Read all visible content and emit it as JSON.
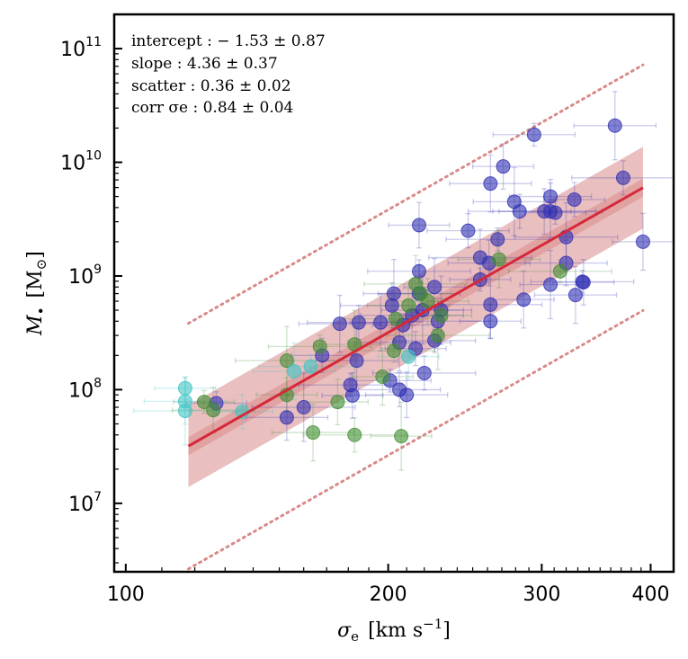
{
  "chart_data": {
    "type": "scatter",
    "title": "",
    "xlabel_symbol": "σ",
    "xlabel_sub": "e",
    "xlabel_units": "[km s",
    "xlabel_units_sup": "−1",
    "xlabel_units_close": "]",
    "ylabel_symbol": "M",
    "ylabel_sub": "•",
    "ylabel_units": "[M",
    "ylabel_units_sub": "⊙",
    "ylabel_units_close": "]",
    "xscale": "log",
    "yscale": "log",
    "xlim": [
      97,
      425
    ],
    "ylim": [
      2500000,
      200000000000
    ],
    "xticks": [
      {
        "value": 100,
        "label": "100"
      },
      {
        "value": 200,
        "label": "200"
      },
      {
        "value": 300,
        "label": "300"
      },
      {
        "value": 400,
        "label": "400"
      }
    ],
    "yticks": [
      {
        "value": 10000000,
        "base": "10",
        "exp": "7"
      },
      {
        "value": 100000000,
        "base": "10",
        "exp": "8"
      },
      {
        "value": 1000000000,
        "base": "10",
        "exp": "9"
      },
      {
        "value": 10000000000,
        "base": "10",
        "exp": "10"
      },
      {
        "value": 100000000000,
        "base": "10",
        "exp": "11"
      }
    ],
    "annotations": [
      "intercept :  − 1.53 ± 0.87",
      "slope :  4.36 ± 0.37",
      "scatter :  0.36 ± 0.02",
      "corr σe :  0.84 ± 0.04"
    ],
    "fit": {
      "intercept": -1.53,
      "slope": 4.36,
      "scatter": 0.36,
      "x_range": [
        118,
        392
      ],
      "fit_band_dex": 0.08,
      "scatter_band_dex": 0.36,
      "outer_offset_dex": 1.08,
      "line_color": "#d62839",
      "band_color": "#d98a8a",
      "outer_color": "#d98a8a"
    },
    "series": [
      {
        "name": "blue",
        "color": "#2f2fb3",
        "points": [
          [
            127,
            76000000.0
          ],
          [
            153,
            57000000.0
          ],
          [
            160,
            70000000.0
          ],
          [
            168,
            200000000.0
          ],
          [
            176,
            380000000.0
          ],
          [
            181,
            110000000.0
          ],
          [
            182,
            89000000.0
          ],
          [
            184,
            180000000.0
          ],
          [
            185,
            390000000.0
          ],
          [
            196,
            390000000.0
          ],
          [
            201,
            120000000.0
          ],
          [
            202,
            550000000.0
          ],
          [
            203,
            700000000.0
          ],
          [
            206,
            100000000.0
          ],
          [
            206,
            260000000.0
          ],
          [
            208,
            370000000.0
          ],
          [
            210,
            90000000.0
          ],
          [
            213,
            450000000.0
          ],
          [
            215,
            230000000.0
          ],
          [
            217,
            700000000.0
          ],
          [
            217,
            1100000000.0
          ],
          [
            217,
            2800000000.0
          ],
          [
            219,
            500000000.0
          ],
          [
            220,
            140000000.0
          ],
          [
            226,
            800000000.0
          ],
          [
            226,
            270000000.0
          ],
          [
            228,
            400000000.0
          ],
          [
            230,
            500000000.0
          ],
          [
            247,
            2500000000.0
          ],
          [
            255,
            1450000000.0
          ],
          [
            255,
            930000000.0
          ],
          [
            261,
            1300000000.0
          ],
          [
            262,
            560000000.0
          ],
          [
            262,
            400000000.0
          ],
          [
            262,
            6500000000.0
          ],
          [
            267,
            2100000000.0
          ],
          [
            271,
            9200000000.0
          ],
          [
            279,
            4500000000.0
          ],
          [
            283,
            3700000000.0
          ],
          [
            286,
            620000000.0
          ],
          [
            294,
            17500000000.0
          ],
          [
            302,
            3700000000.0
          ],
          [
            307,
            840000000.0
          ],
          [
            307,
            5000000000.0
          ],
          [
            307,
            3700000000.0
          ],
          [
            311,
            3600000000.0
          ],
          [
            320,
            1300000000.0
          ],
          [
            320,
            2200000000.0
          ],
          [
            327,
            4700000000.0
          ],
          [
            328,
            680000000.0
          ],
          [
            334,
            890000000.0
          ],
          [
            335,
            880000000.0
          ],
          [
            364,
            21000000000.0
          ],
          [
            372,
            7300000000.0
          ],
          [
            392,
            2000000000.0
          ]
        ]
      },
      {
        "name": "green",
        "color": "#3e8e2e",
        "points": [
          [
            123,
            78000000.0
          ],
          [
            126,
            66000000.0
          ],
          [
            153,
            180000000.0
          ],
          [
            153,
            90000000.0
          ],
          [
            164,
            42000000.0
          ],
          [
            167,
            240000000.0
          ],
          [
            175,
            78000000.0
          ],
          [
            183,
            250000000.0
          ],
          [
            183,
            40000000.0
          ],
          [
            197,
            130000000.0
          ],
          [
            203,
            220000000.0
          ],
          [
            204,
            420000000.0
          ],
          [
            207,
            39000000.0
          ],
          [
            211,
            550000000.0
          ],
          [
            215,
            850000000.0
          ],
          [
            218,
            700000000.0
          ],
          [
            222,
            600000000.0
          ],
          [
            228,
            300000000.0
          ],
          [
            230,
            450000000.0
          ],
          [
            268,
            1400000000.0
          ],
          [
            315,
            1100000000.0
          ]
        ]
      },
      {
        "name": "cyan",
        "color": "#40c4c4",
        "points": [
          [
            117,
            103000000.0
          ],
          [
            117,
            79000000.0
          ],
          [
            117,
            65000000.0
          ],
          [
            136,
            64000000.0
          ],
          [
            156,
            145000000.0
          ],
          [
            163,
            160000000.0
          ],
          [
            211,
            195000000.0
          ]
        ]
      }
    ]
  }
}
